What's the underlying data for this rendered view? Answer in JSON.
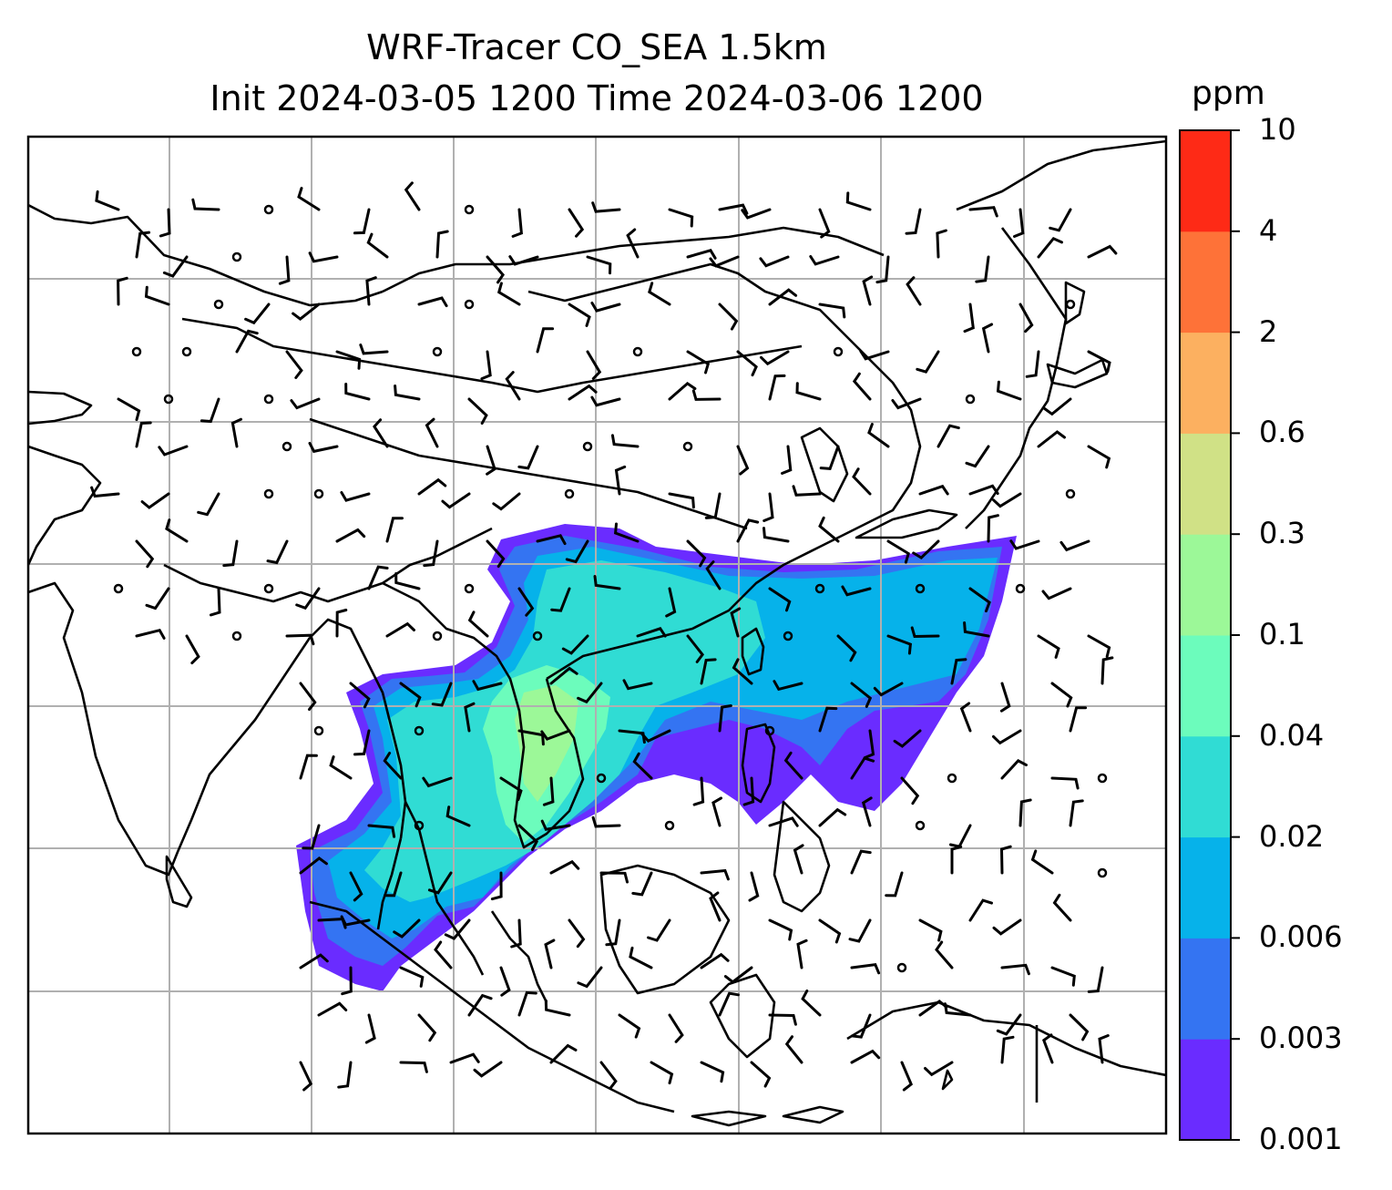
{
  "title": {
    "line1": "WRF-Tracer CO_SEA 1.5km",
    "line2": "Init 2024-03-05 1200 Time 2024-03-06 1200"
  },
  "colorbar": {
    "unit": "ppm",
    "ticks": [
      "0.001",
      "0.003",
      "0.006",
      "0.02",
      "0.04",
      "0.1",
      "0.3",
      "0.6",
      "2",
      "4",
      "10"
    ],
    "colors": [
      "#6a2cff",
      "#3474f2",
      "#06b2ea",
      "#30dcd4",
      "#6cfcbc",
      "#9cf898",
      "#d0e186",
      "#fcb060",
      "#fe7238",
      "#fe2a16"
    ]
  },
  "map": {
    "gridlines": true,
    "wind_barbs": true,
    "coastlines": true
  }
}
